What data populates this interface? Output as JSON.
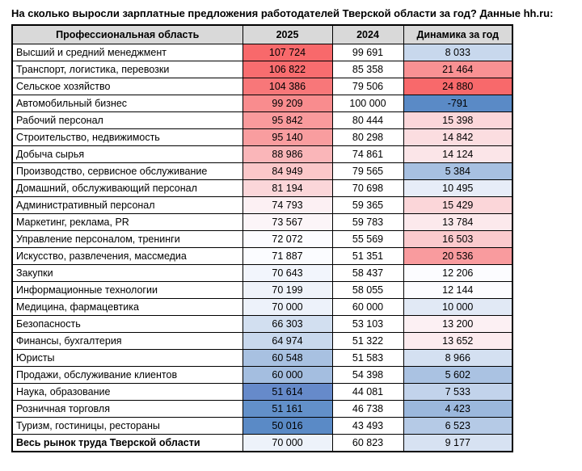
{
  "title": "На сколько выросли зарплатные предложения работодателей Тверской области за год? Данные hh.ru:",
  "colors": {
    "header_bg": "#D9D9D9",
    "border": "#000000",
    "scale_min_blue": "#5A8AC6",
    "scale_mid_white": "#FCFCFF",
    "scale_max_red": "#F8696B"
  },
  "table": {
    "columns": [
      "Профессиональная область",
      "2025",
      "2024",
      "Динамика за год"
    ],
    "rows": [
      {
        "label": "Высший и средний менеджмент",
        "v2025": "107 724",
        "v2024": "99 691",
        "delta": "8 033",
        "bg2025": "#F8696B",
        "bgDelta": "#C8D8ED",
        "bold": false
      },
      {
        "label": "Транспорт, логистика, перевозки",
        "v2025": "106 822",
        "v2024": "85 358",
        "delta": "21 464",
        "bg2025": "#F86D6F",
        "bgDelta": "#F99193",
        "bold": false
      },
      {
        "label": "Сельское хозяйство",
        "v2025": "104 386",
        "v2024": "79 506",
        "delta": "24 880",
        "bg2025": "#F87779",
        "bgDelta": "#F8696B",
        "bold": false
      },
      {
        "label": "Автомобильный бизнес",
        "v2025": "99 209",
        "v2024": "100 000",
        "delta": "-791",
        "bg2025": "#F98C8E",
        "bgDelta": "#5A8AC6",
        "bold": false
      },
      {
        "label": "Рабочий персонал",
        "v2025": "95 842",
        "v2024": "80 444",
        "delta": "15 398",
        "bg2025": "#F99A9C",
        "bgDelta": "#FBD7DA",
        "bold": false
      },
      {
        "label": "Строительство, недвижимость",
        "v2025": "95 140",
        "v2024": "80 298",
        "delta": "14 842",
        "bg2025": "#F99D9F",
        "bgDelta": "#FBDDE0",
        "bold": false
      },
      {
        "label": "Добыча сырья",
        "v2025": "88 986",
        "v2024": "74 861",
        "delta": "14 124",
        "bg2025": "#FAB6B9",
        "bgDelta": "#FBE5E8",
        "bold": false
      },
      {
        "label": "Производство, сервисное обслуживание",
        "v2025": "84 949",
        "v2024": "79 565",
        "delta": "5 384",
        "bg2025": "#FBC7C9",
        "bgDelta": "#A7C0E1",
        "bold": false
      },
      {
        "label": "Домашний, обслуживающий персонал",
        "v2025": "81 194",
        "v2024": "70 698",
        "delta": "10 495",
        "bg2025": "#FBD6D9",
        "bgDelta": "#E7EDF8",
        "bold": false
      },
      {
        "label": "Административный персонал",
        "v2025": "74 793",
        "v2024": "59 365",
        "delta": "15 429",
        "bg2025": "#FCF0F3",
        "bgDelta": "#FBD6D9",
        "bold": false
      },
      {
        "label": "Маркетинг, реклама, PR",
        "v2025": "73 567",
        "v2024": "59 783",
        "delta": "13 784",
        "bg2025": "#FCF5F8",
        "bgDelta": "#FCE9EC",
        "bold": false
      },
      {
        "label": "Управление персоналом, тренинги",
        "v2025": "72 072",
        "v2024": "55 569",
        "delta": "16 503",
        "bg2025": "#FCFCFF",
        "bgDelta": "#FBCACD",
        "bold": false
      },
      {
        "label": "Искусство, развлечения, массмедиа",
        "v2025": "71 887",
        "v2024": "51 351",
        "delta": "20 536",
        "bg2025": "#FBFCFF",
        "bgDelta": "#F99B9E",
        "bold": false
      },
      {
        "label": "Закупки",
        "v2025": "70 643",
        "v2024": "58 437",
        "delta": "12 206",
        "bg2025": "#F2F5FC",
        "bgDelta": "#FCFCFF",
        "bold": false
      },
      {
        "label": "Информационные технологии",
        "v2025": "70 199",
        "v2024": "58 055",
        "delta": "12 144",
        "bg2025": "#EFF3FA",
        "bgDelta": "#FCFCFF",
        "bold": false
      },
      {
        "label": "Медицина, фармацевтика",
        "v2025": "70 000",
        "v2024": "60 000",
        "delta": "10 000",
        "bg2025": "#EDF2FA",
        "bgDelta": "#E1E9F5",
        "bold": false
      },
      {
        "label": "Безопасность",
        "v2025": "66 303",
        "v2024": "53 103",
        "delta": "13 200",
        "bg2025": "#D2DFF0",
        "bgDelta": "#FCF0F3",
        "bold": false
      },
      {
        "label": "Финансы, бухгалтерия",
        "v2025": "64 974",
        "v2024": "51 322",
        "delta": "13 652",
        "bg2025": "#C8D8ED",
        "bgDelta": "#FCEBEE",
        "bold": false
      },
      {
        "label": "Юристы",
        "v2025": "60 548",
        "v2024": "51 583",
        "delta": "8 966",
        "bg2025": "#A8C1E1",
        "bgDelta": "#D4E0F1",
        "bold": false
      },
      {
        "label": "Продажи, обслуживание клиентов",
        "v2025": "60 000",
        "v2024": "54 398",
        "delta": "5 602",
        "bg2025": "#A4BEE0",
        "bgDelta": "#AAC2E2",
        "bold": false
      },
      {
        "label": "Наука, образование",
        "v2025": "51 614",
        "v2024": "44 081",
        "delta": "7 533",
        "bg2025": "#668ACA",
        "bgDelta": "#C2D3EB",
        "bold": false
      },
      {
        "label": "Розничная торговля",
        "v2025": "51 161",
        "v2024": "46 738",
        "delta": "4 423",
        "bg2025": "#6290C9",
        "bgDelta": "#9BB8DD",
        "bold": false
      },
      {
        "label": "Туризм, гостиницы, рестораны",
        "v2025": "50 016",
        "v2024": "43 493",
        "delta": "6 523",
        "bg2025": "#5A8AC6",
        "bgDelta": "#B5CAE6",
        "bold": false
      },
      {
        "label": "Весь рынок труда Тверской области",
        "v2025": "70 000",
        "v2024": "60 823",
        "delta": "9 177",
        "bg2025": "#EDF2FA",
        "bgDelta": "#D7E2F2",
        "bold": true
      }
    ]
  },
  "chart_data": {
    "type": "table",
    "title": "На сколько выросли зарплатные предложения работодателей Тверской области за год? Данные hh.ru:",
    "columns": [
      "Профессиональная область",
      "2025",
      "2024",
      "Динамика за год"
    ],
    "rows": [
      [
        "Высший и средний менеджмент",
        107724,
        99691,
        8033
      ],
      [
        "Транспорт, логистика, перевозки",
        106822,
        85358,
        21464
      ],
      [
        "Сельское хозяйство",
        104386,
        79506,
        24880
      ],
      [
        "Автомобильный бизнес",
        99209,
        100000,
        -791
      ],
      [
        "Рабочий персонал",
        95842,
        80444,
        15398
      ],
      [
        "Строительство, недвижимость",
        95140,
        80298,
        14842
      ],
      [
        "Добыча сырья",
        88986,
        74861,
        14124
      ],
      [
        "Производство, сервисное обслуживание",
        84949,
        79565,
        5384
      ],
      [
        "Домашний, обслуживающий персонал",
        81194,
        70698,
        10495
      ],
      [
        "Административный персонал",
        74793,
        59365,
        15429
      ],
      [
        "Маркетинг, реклама, PR",
        73567,
        59783,
        13784
      ],
      [
        "Управление персоналом, тренинги",
        72072,
        55569,
        16503
      ],
      [
        "Искусство, развлечения, массмедиа",
        71887,
        51351,
        20536
      ],
      [
        "Закупки",
        70643,
        58437,
        12206
      ],
      [
        "Информационные технологии",
        70199,
        58055,
        12144
      ],
      [
        "Медицина, фармацевтика",
        70000,
        60000,
        10000
      ],
      [
        "Безопасность",
        66303,
        53103,
        13200
      ],
      [
        "Финансы, бухгалтерия",
        64974,
        51322,
        13652
      ],
      [
        "Юристы",
        60548,
        51583,
        8966
      ],
      [
        "Продажи, обслуживание клиентов",
        60000,
        54398,
        5602
      ],
      [
        "Наука, образование",
        51614,
        44081,
        7533
      ],
      [
        "Розничная торговля",
        51161,
        46738,
        4423
      ],
      [
        "Туризм, гостиницы, рестораны",
        50016,
        43493,
        6523
      ],
      [
        "Весь рынок труда Тверской области",
        70000,
        60823,
        9177
      ]
    ],
    "conditional_formatting": "3-color scale (blue #5A8AC6 min → white #FCFCFF mid → red #F8696B max) applied to columns 2025 and Динамика за год"
  }
}
